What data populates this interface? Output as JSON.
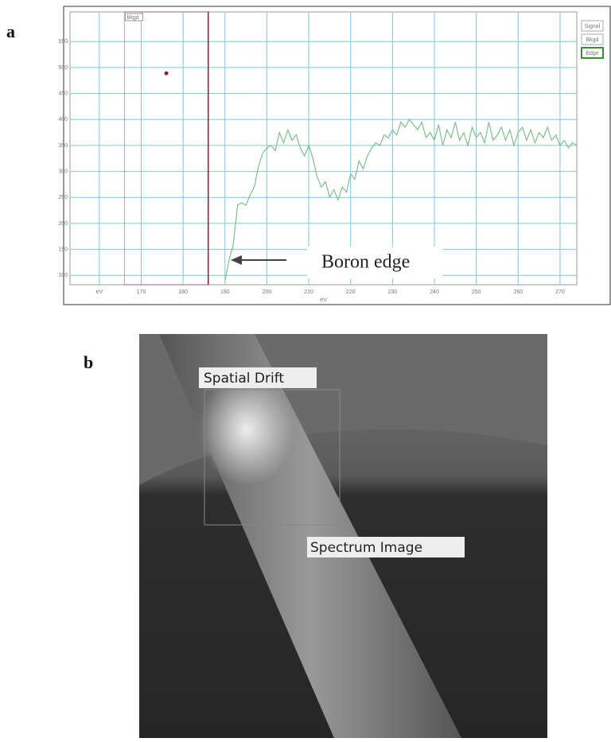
{
  "chart_data": {
    "type": "line",
    "x": [
      190,
      191,
      192,
      193,
      194,
      195,
      196,
      197,
      198,
      199,
      200,
      201,
      202,
      203,
      204,
      205,
      206,
      207,
      208,
      209,
      210,
      211,
      212,
      213,
      214,
      215,
      216,
      217,
      218,
      219,
      220,
      221,
      222,
      223,
      224,
      225,
      226,
      227,
      228,
      229,
      230,
      231,
      232,
      233,
      234,
      235,
      236,
      237,
      238,
      239,
      240,
      241,
      242,
      243,
      244,
      245,
      246,
      247,
      248,
      249,
      250,
      251,
      252,
      253,
      254,
      255,
      256,
      257,
      258,
      259,
      260,
      261,
      262,
      263,
      264,
      265,
      266,
      267,
      268,
      269,
      270,
      271,
      272,
      273,
      274
    ],
    "series": [
      {
        "color": "#7fbf8a",
        "values": [
          90,
          130,
          160,
          235,
          240,
          235,
          255,
          270,
          310,
          335,
          345,
          350,
          340,
          375,
          355,
          380,
          360,
          370,
          345,
          330,
          350,
          325,
          290,
          270,
          280,
          250,
          265,
          245,
          270,
          260,
          295,
          285,
          320,
          305,
          330,
          345,
          355,
          350,
          370,
          365,
          380,
          370,
          395,
          385,
          400,
          390,
          380,
          395,
          365,
          375,
          360,
          390,
          350,
          380,
          365,
          395,
          360,
          375,
          350,
          385,
          365,
          375,
          355,
          395,
          360,
          370,
          385,
          360,
          380,
          350,
          375,
          385,
          360,
          380,
          355,
          375,
          365,
          385,
          360,
          370,
          350,
          360,
          345,
          355,
          350
        ]
      }
    ],
    "xlim": [
      153,
      274
    ],
    "ylim": [
      82,
      607
    ],
    "xticks": [
      {
        "value": 160,
        "label": "eV"
      },
      170,
      180,
      190,
      200,
      210,
      220,
      230,
      240,
      250,
      260,
      270
    ],
    "yticks": [
      100,
      150,
      200,
      250,
      300,
      350,
      400,
      450,
      500,
      550
    ],
    "x_label": "eV",
    "grid": true,
    "grid_color": "#7cc8e3",
    "region": {
      "label": "bkgd",
      "x": [
        166,
        186
      ],
      "color": "#8b1a2b"
    },
    "marker": {
      "x": 176,
      "y": 489,
      "color": "#8b1a2b"
    },
    "annotation": {
      "text": "Boron edge"
    },
    "buttons": [
      "Signal",
      "Bkgd",
      "Edge"
    ]
  },
  "figure": {
    "panel_labels": [
      "a",
      "b"
    ],
    "image_labels": [
      "Spatial Drift",
      "Spectrum Image"
    ]
  }
}
